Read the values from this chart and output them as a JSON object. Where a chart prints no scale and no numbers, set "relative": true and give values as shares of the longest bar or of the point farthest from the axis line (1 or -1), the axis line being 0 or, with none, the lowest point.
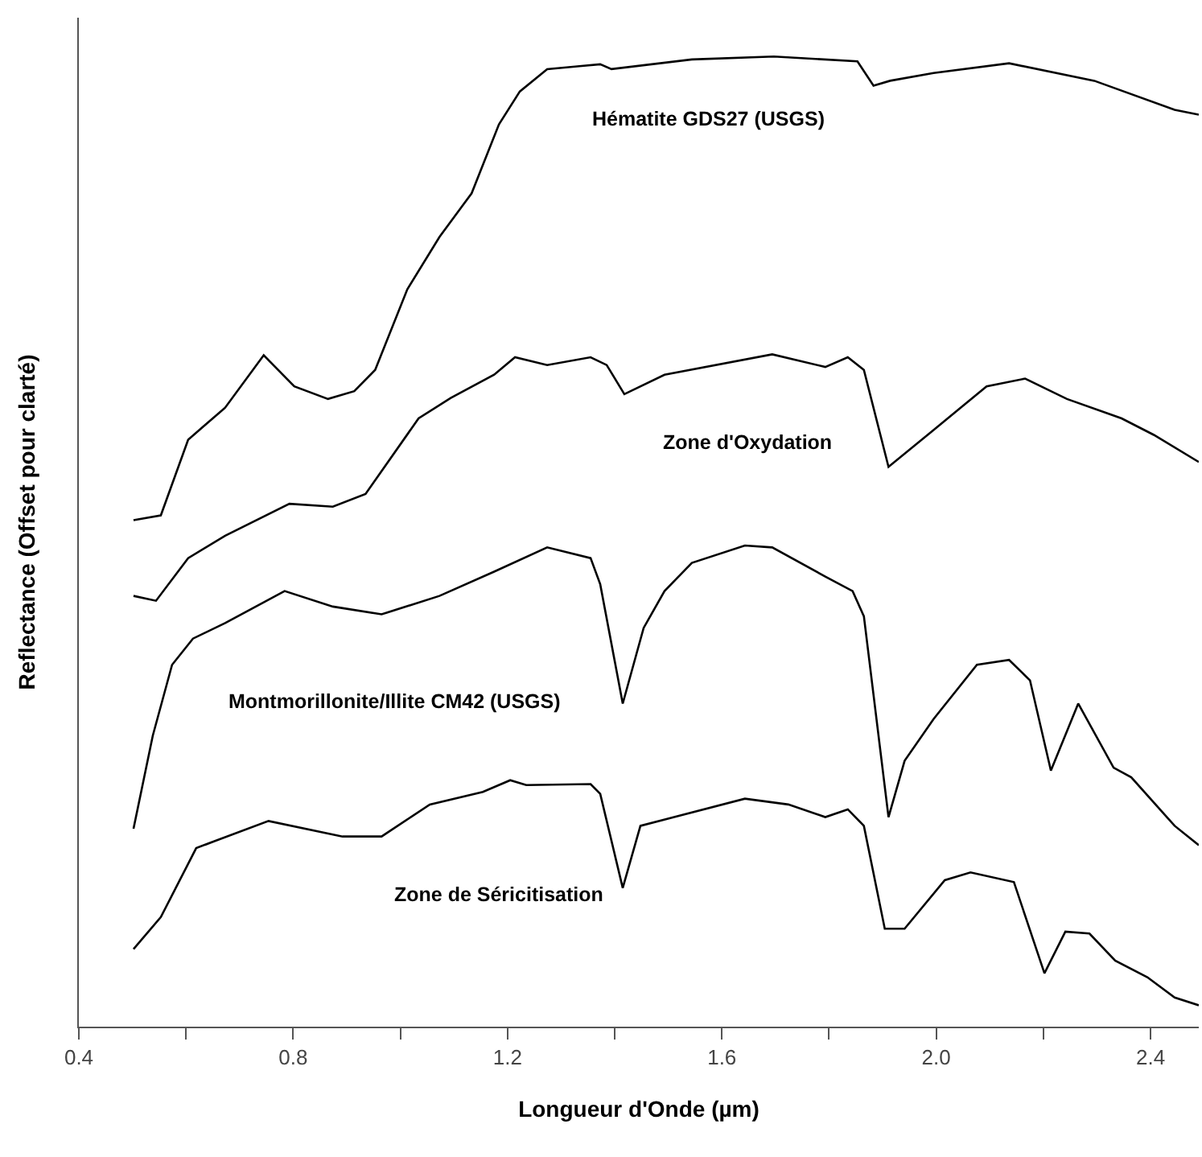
{
  "chart_data": {
    "type": "line",
    "relative": true,
    "xlabel": "Longueur d'Onde (µm)",
    "ylabel": "Reflectance (Offset pour clarté)",
    "xlim": [
      0.4,
      2.49
    ],
    "xticks": [
      0.4,
      {
        "value": 0.6,
        "label": null
      },
      0.8,
      {
        "value": 1.0,
        "label": null
      },
      1.2,
      {
        "value": 1.4,
        "label": null
      },
      1.6,
      {
        "value": 1.8,
        "label": null
      },
      {
        "value": 2,
        "label": "2.0"
      },
      {
        "value": 2.2,
        "label": null
      },
      2.4
    ],
    "grid": false,
    "legend": false,
    "tick_labels": "x",
    "marker": "none",
    "line_style": "solid",
    "series": [
      {
        "name": "Hématite GDS27 (USGS)",
        "color": "#000000",
        "x": [
          0.502,
          0.553,
          0.604,
          0.673,
          0.745,
          0.802,
          0.865,
          0.914,
          0.953,
          1.013,
          1.073,
          1.133,
          1.184,
          1.223,
          1.274,
          1.334,
          1.373,
          1.394,
          1.544,
          1.697,
          1.853,
          1.883,
          1.914,
          1.995,
          2.136,
          2.295,
          2.445,
          2.49
        ],
        "values": [
          0.522,
          0.527,
          0.605,
          0.638,
          0.692,
          0.66,
          0.647,
          0.655,
          0.677,
          0.76,
          0.814,
          0.859,
          0.93,
          0.964,
          0.987,
          0.99,
          0.992,
          0.987,
          0.997,
          1.0,
          0.995,
          0.97,
          0.975,
          0.983,
          0.993,
          0.975,
          0.945,
          0.94
        ]
      },
      {
        "name": "Zone d'Oxydation",
        "color": "#000000",
        "x": [
          0.502,
          0.544,
          0.604,
          0.673,
          0.793,
          0.874,
          0.935,
          1.034,
          1.094,
          1.175,
          1.214,
          1.274,
          1.355,
          1.385,
          1.418,
          1.493,
          1.694,
          1.793,
          1.835,
          1.865,
          1.911,
          1.995,
          2.094,
          2.166,
          2.244,
          2.346,
          2.406,
          2.49
        ],
        "values": [
          0.444,
          0.439,
          0.483,
          0.506,
          0.539,
          0.536,
          0.549,
          0.627,
          0.648,
          0.672,
          0.69,
          0.682,
          0.69,
          0.682,
          0.652,
          0.672,
          0.693,
          0.68,
          0.69,
          0.677,
          0.577,
          0.615,
          0.66,
          0.668,
          0.647,
          0.627,
          0.61,
          0.582
        ]
      },
      {
        "name": "Montmorillonite/Illite CM42 (USGS)",
        "color": "#000000",
        "x": [
          0.502,
          0.538,
          0.574,
          0.613,
          0.673,
          0.784,
          0.874,
          0.965,
          1.073,
          1.175,
          1.274,
          1.355,
          1.373,
          1.415,
          1.454,
          1.493,
          1.544,
          1.643,
          1.694,
          1.793,
          1.844,
          1.865,
          1.911,
          1.941,
          1.995,
          2.076,
          2.136,
          2.175,
          2.214,
          2.265,
          2.331,
          2.364,
          2.445,
          2.49
        ],
        "values": [
          0.204,
          0.3,
          0.373,
          0.4,
          0.416,
          0.449,
          0.433,
          0.425,
          0.444,
          0.469,
          0.494,
          0.483,
          0.456,
          0.333,
          0.411,
          0.449,
          0.478,
          0.496,
          0.494,
          0.464,
          0.449,
          0.423,
          0.216,
          0.274,
          0.317,
          0.373,
          0.378,
          0.357,
          0.264,
          0.333,
          0.267,
          0.257,
          0.207,
          0.187
        ]
      },
      {
        "name": "Zone de Séricitisation",
        "color": "#000000",
        "x": [
          0.502,
          0.553,
          0.619,
          0.652,
          0.754,
          0.892,
          0.965,
          1.055,
          1.154,
          1.205,
          1.235,
          1.355,
          1.373,
          1.415,
          1.448,
          1.643,
          1.724,
          1.793,
          1.835,
          1.865,
          1.904,
          1.941,
          2.016,
          2.064,
          2.145,
          2.202,
          2.241,
          2.286,
          2.334,
          2.394,
          2.445,
          2.49
        ],
        "values": [
          0.08,
          0.113,
          0.184,
          0.191,
          0.212,
          0.196,
          0.196,
          0.229,
          0.242,
          0.254,
          0.249,
          0.25,
          0.24,
          0.143,
          0.207,
          0.235,
          0.229,
          0.216,
          0.224,
          0.207,
          0.101,
          0.101,
          0.151,
          0.159,
          0.149,
          0.055,
          0.098,
          0.096,
          0.068,
          0.051,
          0.03,
          0.022
        ]
      }
    ]
  }
}
